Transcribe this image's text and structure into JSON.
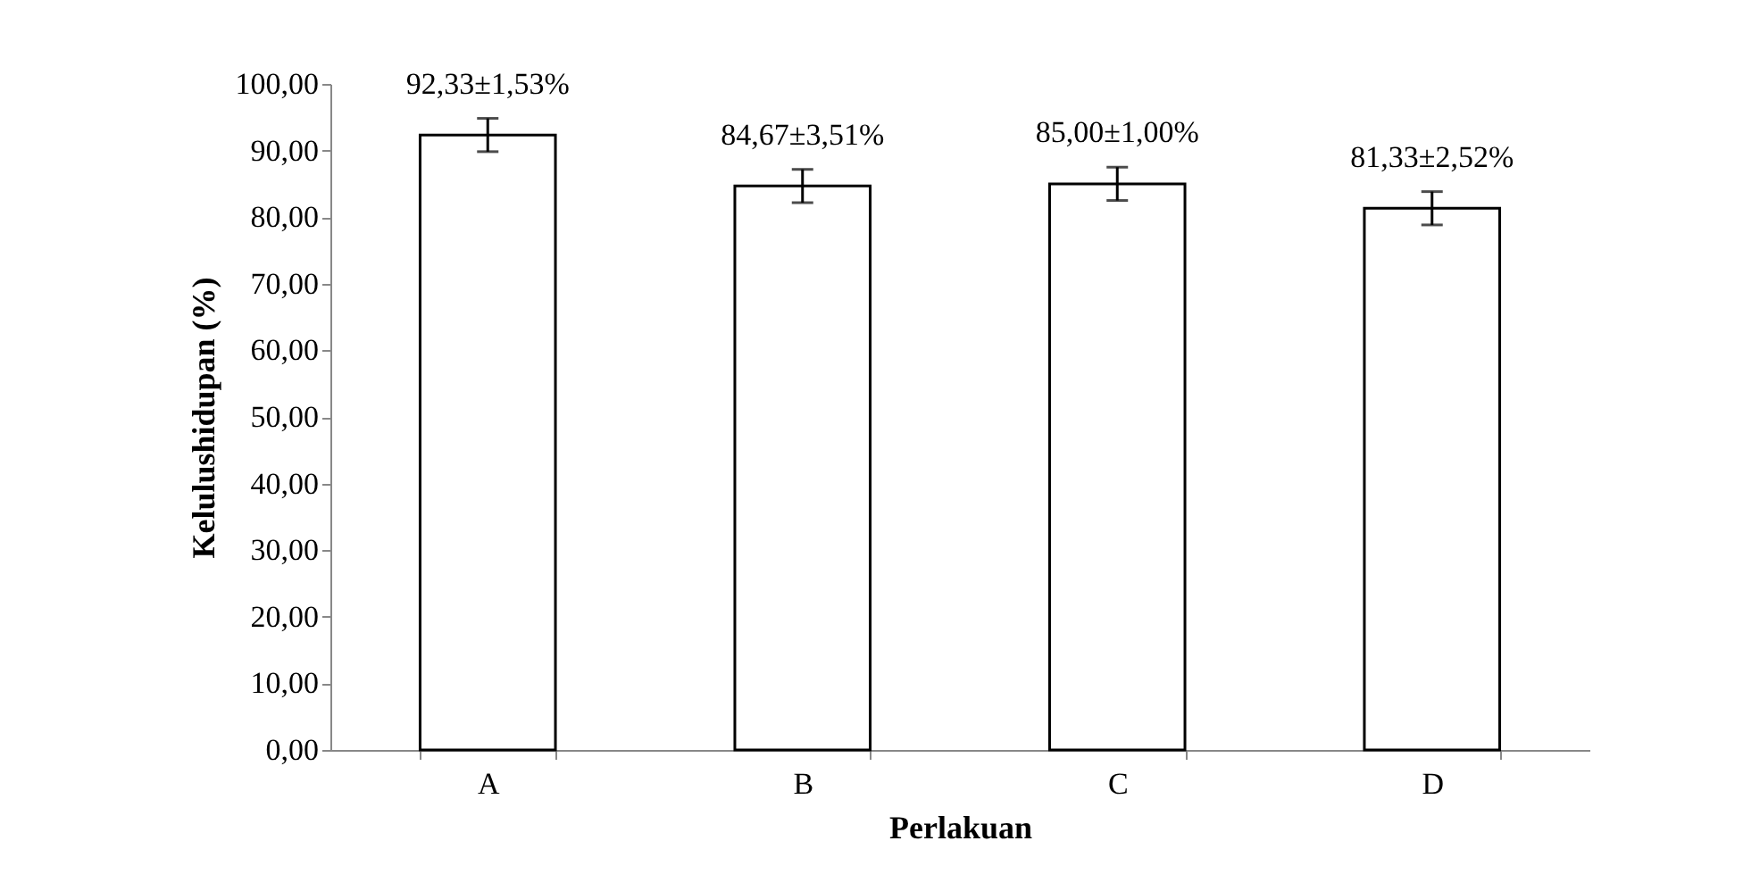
{
  "chart_data": {
    "type": "bar",
    "xlabel": "Perlakuan",
    "ylabel": "Kelulushidupan (%)",
    "categories": [
      "A",
      "B",
      "C",
      "D"
    ],
    "values": [
      92.33,
      84.67,
      85.0,
      81.33
    ],
    "errors": [
      2.5,
      2.5,
      2.5,
      2.5
    ],
    "value_labels": [
      "92,33±1,53%",
      "84,67±3,51%",
      "85,00±1,00%",
      "81,33±2,52%"
    ],
    "color": "#ffffff",
    "ylim": [
      0,
      100
    ],
    "yticks": [
      {
        "value": 0,
        "label": "0,00"
      },
      {
        "value": 10,
        "label": "10,00"
      },
      {
        "value": 20,
        "label": "20,00"
      },
      {
        "value": 30,
        "label": "30,00"
      },
      {
        "value": 40,
        "label": "40,00"
      },
      {
        "value": 50,
        "label": "50,00"
      },
      {
        "value": 60,
        "label": "60,00"
      },
      {
        "value": 70,
        "label": "70,00"
      },
      {
        "value": 80,
        "label": "80,00"
      },
      {
        "value": 90,
        "label": "90,00"
      },
      {
        "value": 100,
        "label": "100,00"
      }
    ],
    "grid": false
  }
}
